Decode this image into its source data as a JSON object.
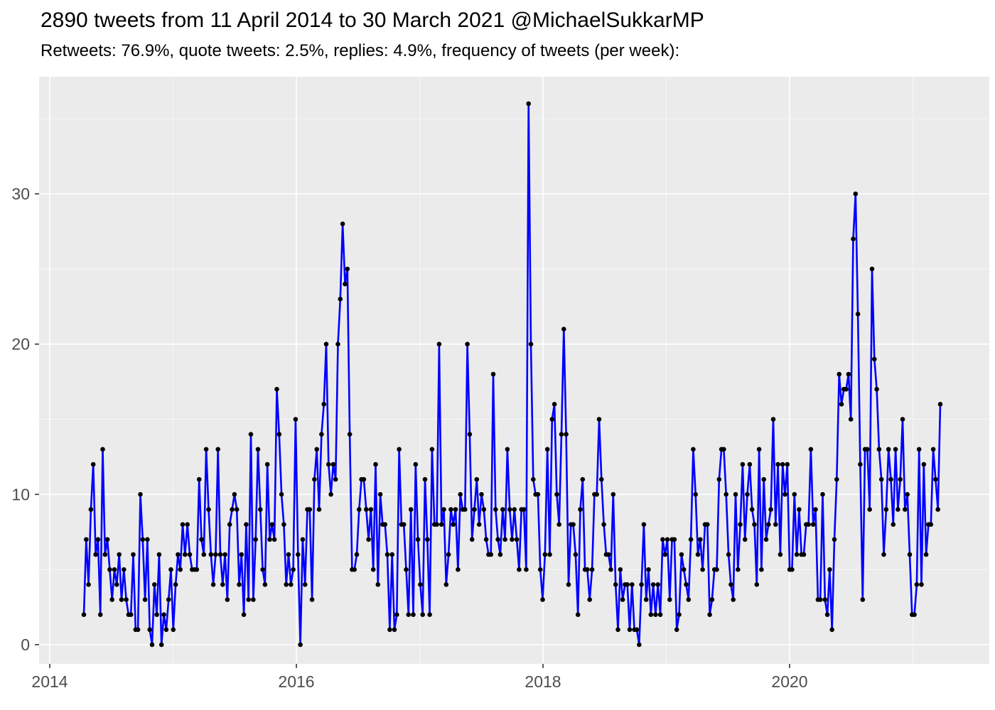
{
  "header": {
    "title": "2890 tweets from 11 April 2014 to 30 March 2021 @MichaelSukkarMP",
    "subtitle": "Retweets: 76.9%, quote tweets: 2.5%, replies: 4.9%, frequency of tweets (per week):"
  },
  "chart_data": {
    "type": "line",
    "title": "2890 tweets from 11 April 2014 to 30 March 2021 @MichaelSukkarMP",
    "subtitle": "Retweets: 76.9%, quote tweets: 2.5%, replies: 4.9%, frequency of tweets (per week):",
    "xlabel": "",
    "ylabel": "",
    "x_start": "2014-04-11",
    "x_end": "2021-03-30",
    "interval": "week",
    "x_ticks": [
      "2014",
      "2016",
      "2018",
      "2020"
    ],
    "x_tick_years": [
      2014,
      2016,
      2018,
      2020
    ],
    "x_minor_years": [
      2015,
      2017,
      2019,
      2021
    ],
    "y_ticks": [
      "0",
      "10",
      "20",
      "30"
    ],
    "y_tick_values": [
      0,
      10,
      20,
      30
    ],
    "y_minor_values": [
      5,
      15,
      25,
      35
    ],
    "ylim": [
      0,
      37.8
    ],
    "grid": true,
    "legend": false,
    "series_name": "tweets per week",
    "values": [
      2,
      7,
      4,
      9,
      12,
      6,
      7,
      2,
      13,
      6,
      7,
      5,
      3,
      5,
      4,
      6,
      3,
      5,
      3,
      2,
      2,
      6,
      1,
      1,
      10,
      7,
      3,
      7,
      1,
      0,
      4,
      2,
      6,
      0,
      2,
      1,
      3,
      5,
      1,
      4,
      6,
      5,
      8,
      6,
      8,
      6,
      5,
      5,
      5,
      11,
      7,
      6,
      13,
      9,
      6,
      4,
      6,
      13,
      6,
      4,
      6,
      3,
      8,
      9,
      10,
      9,
      4,
      6,
      2,
      8,
      3,
      14,
      3,
      7,
      13,
      9,
      5,
      4,
      12,
      7,
      8,
      7,
      17,
      14,
      10,
      8,
      4,
      6,
      4,
      5,
      15,
      6,
      0,
      7,
      4,
      9,
      9,
      3,
      11,
      13,
      9,
      14,
      16,
      20,
      12,
      10,
      12,
      11,
      20,
      23,
      28,
      24,
      25,
      14,
      5,
      5,
      6,
      9,
      11,
      11,
      9,
      7,
      9,
      5,
      12,
      4,
      10,
      8,
      8,
      6,
      1,
      6,
      1,
      2,
      13,
      8,
      8,
      5,
      2,
      9,
      2,
      12,
      7,
      4,
      2,
      11,
      7,
      2,
      13,
      8,
      8,
      20,
      8,
      9,
      4,
      6,
      9,
      8,
      9,
      5,
      10,
      9,
      9,
      20,
      14,
      7,
      9,
      11,
      8,
      10,
      9,
      7,
      6,
      6,
      18,
      9,
      7,
      6,
      9,
      7,
      13,
      9,
      7,
      9,
      7,
      5,
      9,
      9,
      5,
      36,
      20,
      11,
      10,
      10,
      5,
      3,
      6,
      13,
      6,
      15,
      16,
      10,
      8,
      14,
      21,
      14,
      4,
      8,
      8,
      6,
      2,
      9,
      11,
      5,
      5,
      3,
      5,
      10,
      10,
      15,
      11,
      8,
      6,
      6,
      5,
      10,
      4,
      1,
      5,
      3,
      4,
      4,
      1,
      4,
      1,
      1,
      0,
      4,
      8,
      3,
      5,
      2,
      4,
      2,
      4,
      2,
      7,
      6,
      7,
      3,
      7,
      7,
      1,
      2,
      6,
      5,
      4,
      3,
      7,
      13,
      10,
      6,
      7,
      5,
      8,
      8,
      2,
      3,
      5,
      5,
      11,
      13,
      13,
      10,
      6,
      4,
      3,
      10,
      5,
      8,
      12,
      7,
      10,
      12,
      9,
      8,
      4,
      13,
      5,
      11,
      7,
      8,
      9,
      15,
      8,
      12,
      6,
      12,
      10,
      12,
      5,
      5,
      10,
      6,
      9,
      6,
      6,
      8,
      8,
      13,
      8,
      9,
      3,
      3,
      10,
      3,
      2,
      5,
      1,
      7,
      11,
      18,
      16,
      17,
      17,
      18,
      15,
      27,
      30,
      22,
      12,
      3,
      13,
      13,
      9,
      25,
      19,
      17,
      13,
      11,
      6,
      9,
      13,
      11,
      8,
      13,
      9,
      11,
      15,
      9,
      10,
      6,
      2,
      2,
      4,
      13,
      4,
      12,
      6,
      8,
      8,
      13,
      11,
      9,
      16
    ],
    "colors": {
      "line": "#0000FF",
      "point": "#000000",
      "panel": "#EBEBEB",
      "grid_major": "#FFFFFF",
      "grid_minor": "#F7F7F7",
      "axis_text": "#4D4D4D",
      "tick_mark": "#333333",
      "title_text": "#000000"
    }
  }
}
